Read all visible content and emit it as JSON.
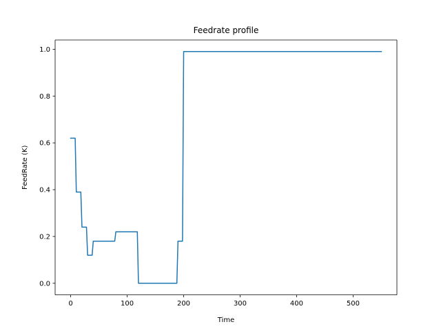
{
  "chart_data": {
    "type": "line",
    "title": "Feedrate profile",
    "xlabel": "Time",
    "ylabel": "FeedRate (K)",
    "xlim": [
      -27.5,
      577.5
    ],
    "ylim": [
      -0.0495,
      1.0395
    ],
    "xticks": [
      0,
      100,
      200,
      300,
      400,
      500
    ],
    "yticks": [
      0.0,
      0.2,
      0.4,
      0.6,
      0.8,
      1.0
    ],
    "xtick_labels": [
      "0",
      "100",
      "200",
      "300",
      "400",
      "500"
    ],
    "ytick_labels": [
      "0.0",
      "0.2",
      "0.4",
      "0.6",
      "0.8",
      "1.0"
    ],
    "grid": false,
    "series": [
      {
        "color": "#1f77b4",
        "x": [
          0,
          8,
          10,
          18,
          20,
          28,
          30,
          38,
          40,
          78,
          80,
          118,
          120,
          188,
          190,
          198,
          200,
          550
        ],
        "y": [
          0.62,
          0.62,
          0.39,
          0.39,
          0.24,
          0.24,
          0.12,
          0.12,
          0.18,
          0.18,
          0.22,
          0.22,
          0.0,
          0.0,
          0.18,
          0.18,
          0.99,
          0.99
        ]
      }
    ]
  }
}
